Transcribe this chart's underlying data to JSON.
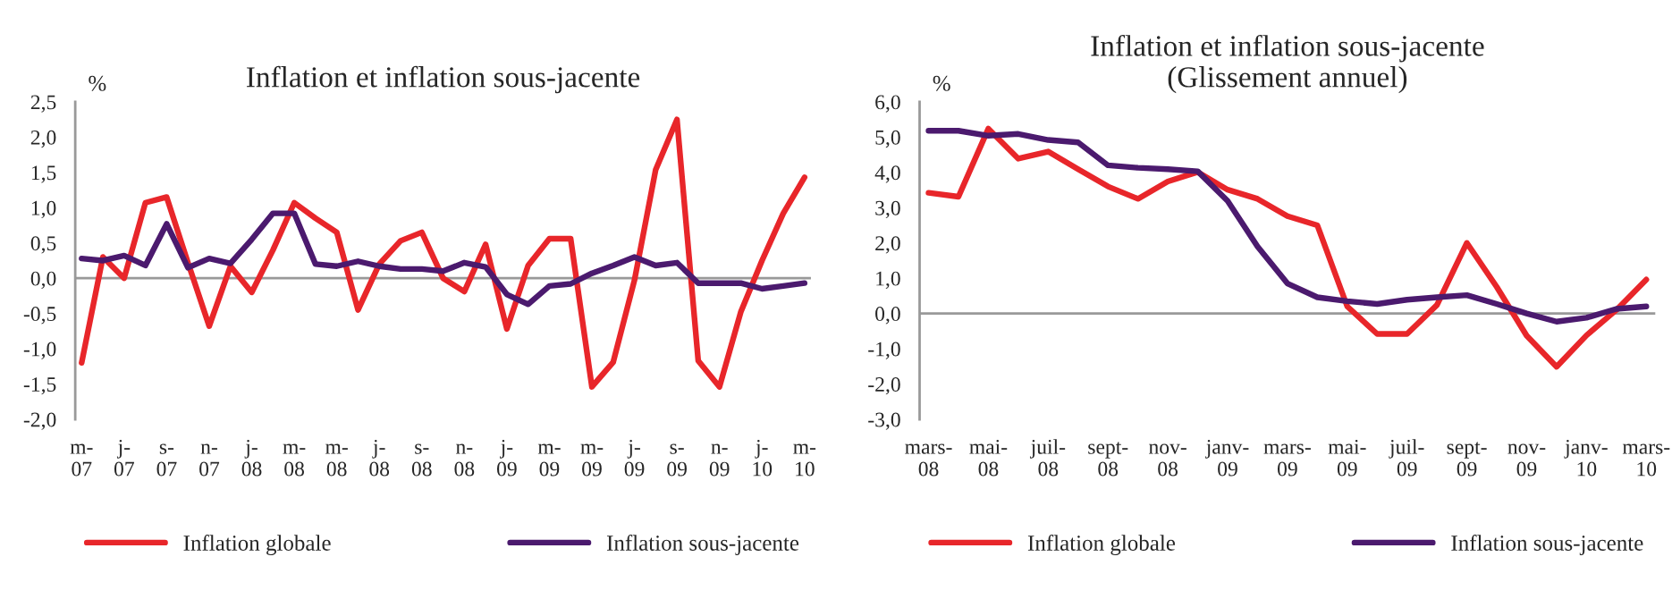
{
  "chart_data": [
    {
      "type": "line",
      "title": "Inflation et inflation sous-jacente",
      "ylabel": "%",
      "categories": [
        "m-\n07",
        null,
        "j-\n07",
        null,
        "s-\n07",
        null,
        "n-\n07",
        null,
        "j-\n08",
        null,
        "m-\n08",
        null,
        "m-\n08",
        null,
        "j-\n08",
        null,
        "s-\n08",
        null,
        "n-\n08",
        null,
        "j-\n09",
        null,
        "m-\n09",
        null,
        "m-\n09",
        null,
        "j-\n09",
        null,
        "s-\n09",
        null,
        "n-\n09",
        null,
        "j-\n10",
        null,
        "m-\n10"
      ],
      "series": [
        {
          "name": "Inflation globale",
          "color": "#e8262a",
          "values": [
            -1.2,
            0.3,
            0.0,
            1.07,
            1.15,
            0.22,
            -0.68,
            0.17,
            -0.2,
            0.4,
            1.07,
            0.85,
            0.65,
            -0.45,
            0.2,
            0.53,
            0.65,
            0.0,
            -0.19,
            0.48,
            -0.72,
            0.18,
            0.56,
            0.56,
            -1.54,
            -1.19,
            -0.03,
            1.54,
            2.25,
            -1.17,
            -1.54,
            -0.48,
            0.25,
            0.92,
            1.43
          ]
        },
        {
          "name": "Inflation sous-jacente",
          "color": "#4b1a6e",
          "values": [
            0.28,
            0.25,
            0.32,
            0.18,
            0.77,
            0.15,
            0.28,
            0.21,
            0.55,
            0.92,
            0.92,
            0.2,
            0.17,
            0.24,
            0.17,
            0.13,
            0.13,
            0.1,
            0.22,
            0.16,
            -0.23,
            -0.37,
            -0.11,
            -0.08,
            0.07,
            0.18,
            0.3,
            0.18,
            0.22,
            -0.07,
            -0.07,
            -0.07,
            -0.15,
            -0.11,
            -0.07
          ]
        }
      ],
      "ylim": [
        -2.0,
        2.5
      ],
      "yticks": [
        {
          "value": -2.0,
          "label": "-2,0"
        },
        {
          "value": -1.5,
          "label": "-1,5"
        },
        {
          "value": -1.0,
          "label": "-1,0"
        },
        {
          "value": -0.5,
          "label": "-0,5"
        },
        {
          "value": 0.0,
          "label": "0,0"
        },
        {
          "value": 0.5,
          "label": "0,5"
        },
        {
          "value": 1.0,
          "label": "1,0"
        },
        {
          "value": 1.5,
          "label": "1,5"
        },
        {
          "value": 2.0,
          "label": "2,0"
        },
        {
          "value": 2.5,
          "label": "2,5"
        }
      ],
      "ref_lines": [
        {
          "axis": "y",
          "value": 0.0,
          "color": "#999999"
        }
      ],
      "grid": false,
      "legend": "bottom",
      "marker": "none",
      "line_style": "solid"
    },
    {
      "type": "line",
      "title": "Inflation et inflation sous-jacente\n(Glissement annuel)",
      "ylabel": "%",
      "categories": [
        "mars-\n08",
        null,
        "mai-\n08",
        null,
        "juil-\n08",
        null,
        "sept-\n08",
        null,
        "nov-\n08",
        null,
        "janv-\n09",
        null,
        "mars-\n09",
        null,
        "mai-\n09",
        null,
        "juil-\n09",
        null,
        "sept-\n09",
        null,
        "nov-\n09",
        null,
        "janv-\n10",
        null,
        "mars-\n10"
      ],
      "series": [
        {
          "name": "Inflation globale",
          "color": "#e8262a",
          "values": [
            3.42,
            3.31,
            5.24,
            4.39,
            4.59,
            4.09,
            3.6,
            3.25,
            3.74,
            4.01,
            3.51,
            3.25,
            2.76,
            2.5,
            0.2,
            -0.58,
            -0.58,
            0.24,
            2.0,
            0.75,
            -0.63,
            -1.51,
            -0.62,
            0.1,
            0.96
          ]
        },
        {
          "name": "Inflation sous-jacente",
          "color": "#4b1a6e",
          "values": [
            5.18,
            5.18,
            5.04,
            5.09,
            4.92,
            4.85,
            4.2,
            4.13,
            4.09,
            4.03,
            3.19,
            1.9,
            0.85,
            0.46,
            0.35,
            0.27,
            0.39,
            0.46,
            0.52,
            0.27,
            0.0,
            -0.23,
            -0.12,
            0.13,
            0.2
          ]
        }
      ],
      "ylim": [
        -3.0,
        6.0
      ],
      "yticks": [
        {
          "value": -3.0,
          "label": "-3,0"
        },
        {
          "value": -2.0,
          "label": "-2,0"
        },
        {
          "value": -1.0,
          "label": "-1,0"
        },
        {
          "value": 0.0,
          "label": "0,0"
        },
        {
          "value": 1.0,
          "label": "1,0"
        },
        {
          "value": 2.0,
          "label": "2,0"
        },
        {
          "value": 3.0,
          "label": "3,0"
        },
        {
          "value": 4.0,
          "label": "4,0"
        },
        {
          "value": 5.0,
          "label": "5,0"
        },
        {
          "value": 6.0,
          "label": "6,0"
        }
      ],
      "ref_lines": [
        {
          "axis": "y",
          "value": 0.0,
          "color": "#999999"
        }
      ],
      "grid": false,
      "legend": "bottom",
      "marker": "none",
      "line_style": "solid"
    }
  ]
}
